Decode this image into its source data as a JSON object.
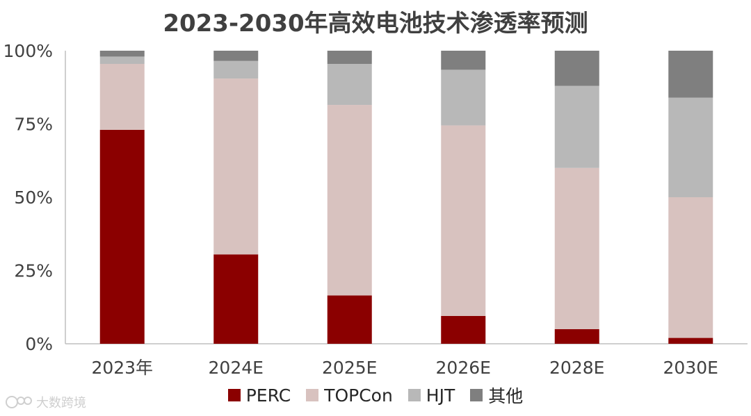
{
  "chart_data": {
    "type": "bar",
    "stacked": true,
    "title": "2023-2030年高效电池技术渗透率预测",
    "categories": [
      "2023年",
      "2024E",
      "2025E",
      "2026E",
      "2028E",
      "2030E"
    ],
    "series": [
      {
        "name": "PERC",
        "color": "#8b0000",
        "values": [
          73,
          30.5,
          16.5,
          9.5,
          5,
          2
        ]
      },
      {
        "name": "TOPCon",
        "color": "#d8c2bf",
        "values": [
          22.5,
          60,
          65,
          65,
          55,
          48
        ]
      },
      {
        "name": "HJT",
        "color": "#b8b8b8",
        "values": [
          2.5,
          6,
          14,
          19,
          28,
          34
        ]
      },
      {
        "name": "其他",
        "color": "#7f7f7f",
        "values": [
          2,
          3.5,
          4.5,
          6.5,
          12,
          16
        ]
      }
    ],
    "yticks": [
      "0%",
      "25%",
      "50%",
      "75%",
      "100%"
    ],
    "ylim": [
      0,
      100
    ],
    "xlabel": "",
    "ylabel": "",
    "legend": "bottom"
  },
  "watermark": {
    "text": "大数跨境",
    "icon": "logo-icon"
  }
}
